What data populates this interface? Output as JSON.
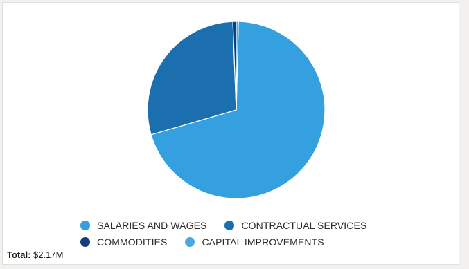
{
  "chart_data": {
    "type": "pie",
    "categories": [
      "SALARIES AND WAGES",
      "CONTRACTUAL SERVICES",
      "COMMODITIES",
      "CAPITAL IMPROVEMENTS"
    ],
    "values": [
      70.1,
      28.9,
      0.6,
      0.4
    ],
    "unit": "%",
    "colors": [
      "#35a0df",
      "#1c6fae",
      "#123f7c",
      "#4da6e2"
    ],
    "legend_position": "bottom"
  },
  "total": {
    "label": "Total:",
    "value": "$2.17M"
  }
}
